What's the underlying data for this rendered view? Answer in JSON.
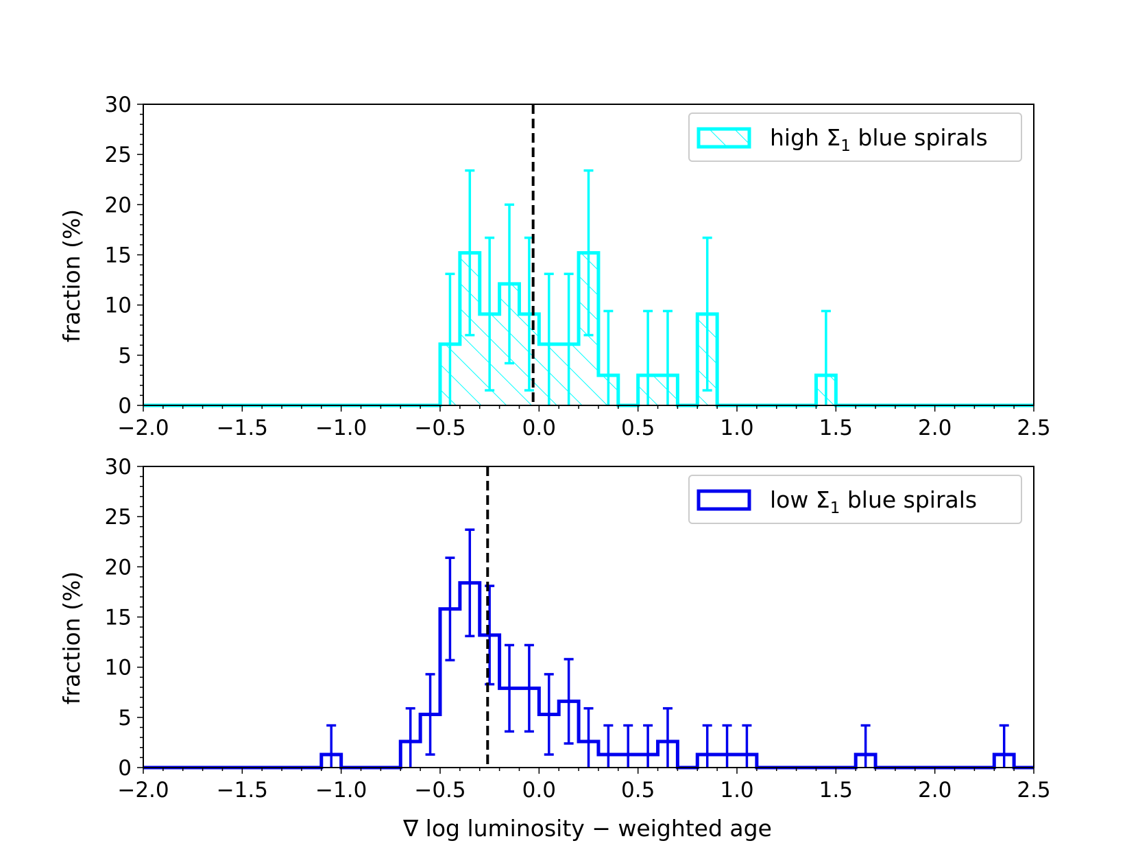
{
  "chart_data": [
    {
      "type": "histogram",
      "legend": {
        "prefix": "high ",
        "sym": "Σ",
        "sub": "1",
        "suffix": " blue spirals",
        "location": "upper right",
        "style": "hatched"
      },
      "color": "#00ffff",
      "xlim": [
        -2.0,
        2.5
      ],
      "ylim": [
        0,
        30
      ],
      "xticks": [
        "−2.0",
        "−1.5",
        "−1.0",
        "−0.5",
        "0.0",
        "0.5",
        "1.0",
        "1.5",
        "2.0",
        "2.5"
      ],
      "yticks": [
        "0",
        "5",
        "10",
        "15",
        "20",
        "25",
        "30"
      ],
      "ylabel": "fraction (%)",
      "xlabel": "",
      "bin_width": 0.1,
      "bin_left": [
        -0.5,
        -0.4,
        -0.3,
        -0.2,
        -0.1,
        0.0,
        0.1,
        0.2,
        0.3,
        0.4,
        0.5,
        0.6,
        0.7,
        0.8,
        0.9,
        1.0,
        1.1,
        1.2,
        1.3,
        1.4
      ],
      "values": [
        6.1,
        15.2,
        9.1,
        12.1,
        9.1,
        6.1,
        6.1,
        15.2,
        3.0,
        0,
        3.0,
        3.0,
        0,
        9.1,
        0,
        0,
        0,
        0,
        0,
        3.0
      ],
      "errors": [
        7.0,
        8.2,
        7.6,
        7.9,
        7.6,
        7.0,
        7.0,
        8.2,
        6.4,
        0,
        6.4,
        6.4,
        0,
        7.6,
        0,
        0,
        0,
        0,
        0,
        6.4
      ],
      "dashed_line_x": -0.03
    },
    {
      "type": "histogram",
      "legend": {
        "prefix": "low ",
        "sym": "Σ",
        "sub": "1",
        "suffix": " blue spirals",
        "location": "upper right",
        "style": "outline"
      },
      "color": "#0000ee",
      "xlim": [
        -2.0,
        2.5
      ],
      "ylim": [
        0,
        30
      ],
      "xticks": [
        "−2.0",
        "−1.5",
        "−1.0",
        "−0.5",
        "0.0",
        "0.5",
        "1.0",
        "1.5",
        "2.0",
        "2.5"
      ],
      "yticks": [
        "0",
        "5",
        "10",
        "15",
        "20",
        "25",
        "30"
      ],
      "ylabel": "fraction (%)",
      "xlabel": "∇ log luminosity − weighted age",
      "bin_width": 0.1,
      "bin_left": [
        -1.1,
        -0.7,
        -0.6,
        -0.5,
        -0.4,
        -0.3,
        -0.2,
        -0.1,
        0.0,
        0.1,
        0.2,
        0.3,
        0.4,
        0.5,
        0.6,
        0.8,
        0.9,
        1.0,
        1.6,
        2.3
      ],
      "values": [
        1.3,
        2.6,
        5.3,
        15.8,
        18.4,
        13.2,
        7.9,
        7.9,
        5.3,
        6.6,
        2.6,
        1.3,
        1.3,
        1.3,
        2.6,
        1.3,
        1.3,
        1.3,
        1.3,
        1.3
      ],
      "errors": [
        2.9,
        3.3,
        4.0,
        5.1,
        5.3,
        4.9,
        4.3,
        4.3,
        4.0,
        4.2,
        3.3,
        2.9,
        2.9,
        2.9,
        3.3,
        2.9,
        2.9,
        2.9,
        2.9,
        2.9
      ],
      "dashed_line_x": -0.26
    }
  ]
}
